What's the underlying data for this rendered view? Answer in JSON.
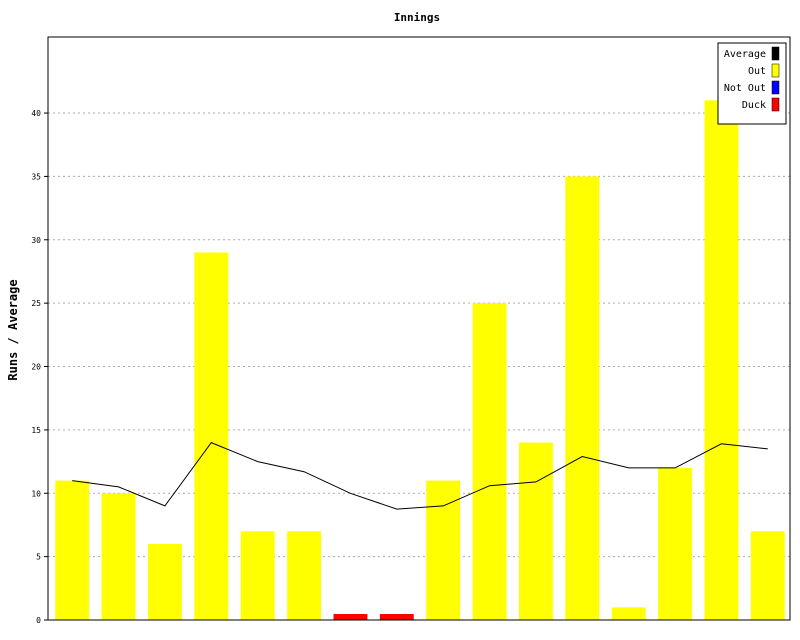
{
  "chart_data": {
    "type": "bar",
    "title": "Innings",
    "ylabel": "Runs / Average",
    "xlabel": "",
    "ylim": [
      0,
      46
    ],
    "yticks": [
      0,
      5,
      10,
      15,
      20,
      25,
      30,
      35,
      40
    ],
    "grid": true,
    "legend_position": "top-right",
    "legend": [
      {
        "name": "Average",
        "color": "#000000"
      },
      {
        "name": "Out",
        "color": "#ffff00"
      },
      {
        "name": "Not Out",
        "color": "#0000ff"
      },
      {
        "name": "Duck",
        "color": "#ff0000"
      }
    ],
    "bars": [
      {
        "value": 11,
        "status": "Out"
      },
      {
        "value": 10,
        "status": "Out"
      },
      {
        "value": 6,
        "status": "Out"
      },
      {
        "value": 29,
        "status": "Out"
      },
      {
        "value": 7,
        "status": "Out"
      },
      {
        "value": 7,
        "status": "Out"
      },
      {
        "value": 0,
        "status": "Duck"
      },
      {
        "value": 0,
        "status": "Duck"
      },
      {
        "value": 11,
        "status": "Out"
      },
      {
        "value": 25,
        "status": "Out"
      },
      {
        "value": 14,
        "status": "Out"
      },
      {
        "value": 35,
        "status": "Out"
      },
      {
        "value": 1,
        "status": "Out"
      },
      {
        "value": 12,
        "status": "Out"
      },
      {
        "value": 41,
        "status": "Out"
      },
      {
        "value": 7,
        "status": "Out"
      }
    ],
    "average": [
      11,
      10.5,
      9,
      14,
      12.5,
      11.7,
      10,
      8.75,
      9,
      10.6,
      10.9,
      12.9,
      12,
      12,
      13.9,
      13.5
    ]
  }
}
